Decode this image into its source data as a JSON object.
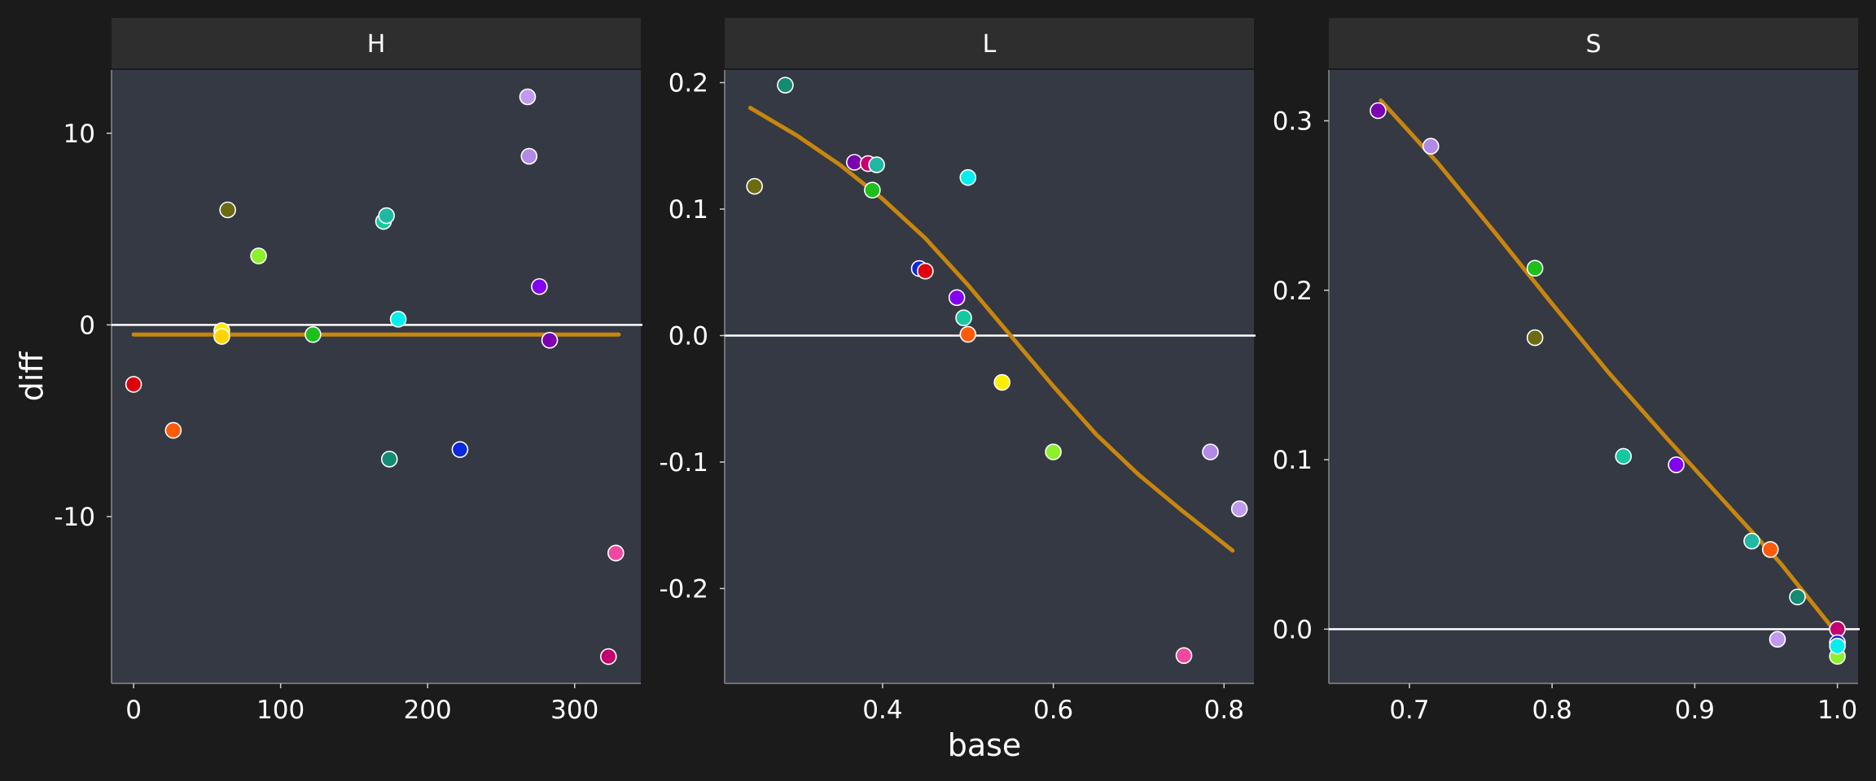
{
  "chart_data": {
    "type": "scatter",
    "xlabel": "base",
    "ylabel": "diff",
    "facets": [
      {
        "title": "H",
        "xlim": [
          -15,
          345
        ],
        "ylim": [
          -18.7,
          13.3
        ],
        "xticks": [
          {
            "v": 0,
            "label": "0"
          },
          {
            "v": 100,
            "label": "100"
          },
          {
            "v": 200,
            "label": "200"
          },
          {
            "v": 300,
            "label": "300"
          }
        ],
        "yticks": [
          {
            "v": 10,
            "label": "10"
          },
          {
            "v": 0,
            "label": "0"
          },
          {
            "v": -10,
            "label": "-10"
          }
        ],
        "hline": 0,
        "fit": [
          [
            0,
            -0.5
          ],
          [
            330,
            -0.5
          ]
        ],
        "points": [
          {
            "x": 0,
            "y": -3.1,
            "color": "#e0000a"
          },
          {
            "x": 27,
            "y": -5.5,
            "color": "#ff5a0a"
          },
          {
            "x": 60,
            "y": -0.3,
            "color": "#ffee00"
          },
          {
            "x": 60,
            "y": -0.6,
            "color": "#ffd400"
          },
          {
            "x": 64,
            "y": 6.0,
            "color": "#6b6b12"
          },
          {
            "x": 85,
            "y": 3.6,
            "color": "#8cf02a"
          },
          {
            "x": 122,
            "y": -0.5,
            "color": "#1cbf1c"
          },
          {
            "x": 170,
            "y": 5.4,
            "color": "#12c9a0"
          },
          {
            "x": 172,
            "y": 5.7,
            "color": "#1fb8a3"
          },
          {
            "x": 174,
            "y": -7.0,
            "color": "#148b72"
          },
          {
            "x": 180,
            "y": 0.3,
            "color": "#00f0f0"
          },
          {
            "x": 222,
            "y": -6.5,
            "color": "#0a28e0"
          },
          {
            "x": 268,
            "y": 11.9,
            "color": "#c09af0"
          },
          {
            "x": 269,
            "y": 8.8,
            "color": "#b08ae6"
          },
          {
            "x": 276,
            "y": 2.0,
            "color": "#8400f0"
          },
          {
            "x": 283,
            "y": -0.8,
            "color": "#7a00b0"
          },
          {
            "x": 323,
            "y": -17.3,
            "color": "#c2006e"
          },
          {
            "x": 328,
            "y": -11.9,
            "color": "#f048a0"
          }
        ]
      },
      {
        "title": "L",
        "xlim": [
          0.215,
          0.835
        ],
        "ylim": [
          -0.275,
          0.21
        ],
        "xticks": [
          {
            "v": 0.4,
            "label": "0.4"
          },
          {
            "v": 0.6,
            "label": "0.6"
          },
          {
            "v": 0.8,
            "label": "0.8"
          }
        ],
        "yticks": [
          {
            "v": 0.2,
            "label": "0.2"
          },
          {
            "v": 0.1,
            "label": "0.1"
          },
          {
            "v": 0.0,
            "label": "0.0"
          },
          {
            "v": -0.1,
            "label": "-0.1"
          },
          {
            "v": -0.2,
            "label": "-0.2"
          }
        ],
        "hline": 0,
        "fit": [
          [
            0.245,
            0.18
          ],
          [
            0.3,
            0.158
          ],
          [
            0.35,
            0.135
          ],
          [
            0.4,
            0.108
          ],
          [
            0.45,
            0.077
          ],
          [
            0.5,
            0.04
          ],
          [
            0.55,
            0.0
          ],
          [
            0.6,
            -0.04
          ],
          [
            0.65,
            -0.078
          ],
          [
            0.7,
            -0.11
          ],
          [
            0.75,
            -0.138
          ],
          [
            0.81,
            -0.17
          ]
        ],
        "points": [
          {
            "x": 0.25,
            "y": 0.118,
            "color": "#6b6b12"
          },
          {
            "x": 0.286,
            "y": 0.198,
            "color": "#148b72"
          },
          {
            "x": 0.367,
            "y": 0.137,
            "color": "#7a00b0"
          },
          {
            "x": 0.383,
            "y": 0.136,
            "color": "#c2006e"
          },
          {
            "x": 0.393,
            "y": 0.135,
            "color": "#1fb8a3"
          },
          {
            "x": 0.388,
            "y": 0.115,
            "color": "#1cbf1c"
          },
          {
            "x": 0.443,
            "y": 0.053,
            "color": "#0a28e0"
          },
          {
            "x": 0.45,
            "y": 0.051,
            "color": "#e0000a"
          },
          {
            "x": 0.487,
            "y": 0.03,
            "color": "#8400f0"
          },
          {
            "x": 0.495,
            "y": 0.014,
            "color": "#12c9a0"
          },
          {
            "x": 0.5,
            "y": 0.001,
            "color": "#ff5a0a"
          },
          {
            "x": 0.5,
            "y": 0.125,
            "color": "#00f0f0"
          },
          {
            "x": 0.54,
            "y": -0.037,
            "color": "#ffee00"
          },
          {
            "x": 0.6,
            "y": -0.092,
            "color": "#8cf02a"
          },
          {
            "x": 0.753,
            "y": -0.253,
            "color": "#f048a0"
          },
          {
            "x": 0.784,
            "y": -0.092,
            "color": "#b08ae6"
          },
          {
            "x": 0.818,
            "y": -0.137,
            "color": "#c09af0"
          }
        ]
      },
      {
        "title": "S",
        "xlim": [
          0.6435,
          1.0145
        ],
        "ylim": [
          -0.032,
          0.33
        ],
        "xticks": [
          {
            "v": 0.7,
            "label": "0.7"
          },
          {
            "v": 0.8,
            "label": "0.8"
          },
          {
            "v": 0.9,
            "label": "0.9"
          },
          {
            "v": 1.0,
            "label": "1.0"
          }
        ],
        "yticks": [
          {
            "v": 0.3,
            "label": "0.3"
          },
          {
            "v": 0.2,
            "label": "0.2"
          },
          {
            "v": 0.1,
            "label": "0.1"
          },
          {
            "v": 0.0,
            "label": "0.0"
          }
        ],
        "hline": 0,
        "fit": [
          [
            0.68,
            0.312
          ],
          [
            0.72,
            0.275
          ],
          [
            0.76,
            0.234
          ],
          [
            0.8,
            0.192
          ],
          [
            0.84,
            0.151
          ],
          [
            0.88,
            0.113
          ],
          [
            0.92,
            0.076
          ],
          [
            0.96,
            0.039
          ],
          [
            1.0,
            -0.003
          ]
        ],
        "points": [
          {
            "x": 0.678,
            "y": 0.306,
            "color": "#7a00b0"
          },
          {
            "x": 0.715,
            "y": 0.285,
            "color": "#b08ae6"
          },
          {
            "x": 0.788,
            "y": 0.213,
            "color": "#1cbf1c"
          },
          {
            "x": 0.788,
            "y": 0.172,
            "color": "#6b6b12"
          },
          {
            "x": 0.85,
            "y": 0.102,
            "color": "#12c9a0"
          },
          {
            "x": 0.887,
            "y": 0.097,
            "color": "#8400f0"
          },
          {
            "x": 0.94,
            "y": 0.052,
            "color": "#1fb8a3"
          },
          {
            "x": 0.953,
            "y": 0.047,
            "color": "#ff5a0a"
          },
          {
            "x": 0.958,
            "y": -0.006,
            "color": "#c09af0"
          },
          {
            "x": 0.972,
            "y": 0.019,
            "color": "#148b72"
          },
          {
            "x": 1.0,
            "y": 0.0,
            "color": "#c2006e"
          },
          {
            "x": 1.0,
            "y": -0.008,
            "color": "#0a28e0"
          },
          {
            "x": 1.0,
            "y": -0.016,
            "color": "#8cf02a"
          },
          {
            "x": 1.0,
            "y": -0.01,
            "color": "#00f0f0"
          }
        ]
      }
    ],
    "colors": {
      "background": "#1b1b1b",
      "panel": "#353943",
      "strip": "#2e2e2e",
      "text": "#ffffff",
      "hline": "#ffffff",
      "fit": "#c8860e"
    }
  }
}
